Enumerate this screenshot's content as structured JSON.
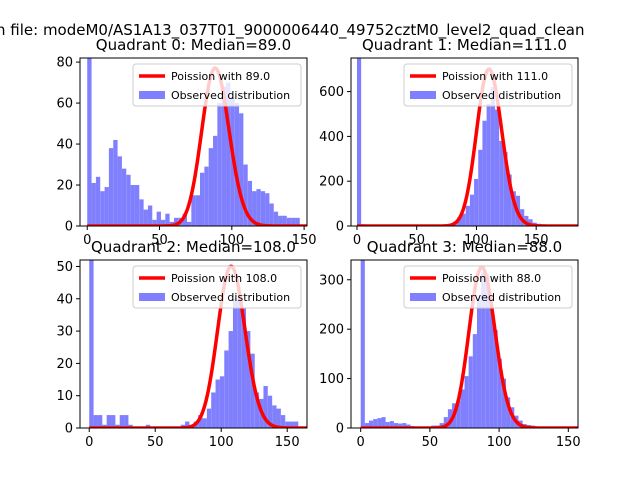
{
  "figure": {
    "suptitle": "n file: modeM0/AS1A13_037T01_9000006440_49752cztM0_level2_quad_clean"
  },
  "colors": {
    "hist": "#8080ff",
    "fit": "#ff0000",
    "axes": "#000000"
  },
  "chart_data": [
    {
      "type": "bar",
      "title": "Quadrant 0: Median=89.0",
      "xlim": [
        -5,
        152
      ],
      "ylim": [
        0,
        82
      ],
      "xticks": [
        0,
        50,
        100,
        150
      ],
      "yticks": [
        0,
        20,
        40,
        60,
        80
      ],
      "legend": {
        "placement": "upper-right",
        "fit_label": "Poission with 89.0",
        "hist_label": "Observed distribution"
      },
      "poisson_mean": 89.0,
      "poisson_peak": 77,
      "bin_width": 3,
      "bins": [
        [
          0,
          82
        ],
        [
          3,
          21
        ],
        [
          6,
          24
        ],
        [
          9,
          17
        ],
        [
          12,
          19
        ],
        [
          15,
          38
        ],
        [
          18,
          42
        ],
        [
          21,
          34
        ],
        [
          24,
          28
        ],
        [
          27,
          25
        ],
        [
          30,
          20
        ],
        [
          33,
          20
        ],
        [
          36,
          13
        ],
        [
          39,
          8
        ],
        [
          42,
          10
        ],
        [
          45,
          3
        ],
        [
          48,
          7
        ],
        [
          51,
          3
        ],
        [
          54,
          6
        ],
        [
          57,
          2
        ],
        [
          60,
          4
        ],
        [
          63,
          4
        ],
        [
          66,
          6
        ],
        [
          69,
          2
        ],
        [
          72,
          15
        ],
        [
          75,
          15
        ],
        [
          78,
          26
        ],
        [
          81,
          29
        ],
        [
          84,
          38
        ],
        [
          87,
          44
        ],
        [
          90,
          60
        ],
        [
          93,
          68
        ],
        [
          96,
          70
        ],
        [
          99,
          63
        ],
        [
          102,
          60
        ],
        [
          105,
          55
        ],
        [
          108,
          30
        ],
        [
          111,
          22
        ],
        [
          114,
          17
        ],
        [
          117,
          18
        ],
        [
          120,
          17
        ],
        [
          123,
          16
        ],
        [
          126,
          11
        ],
        [
          129,
          7
        ],
        [
          132,
          5
        ],
        [
          135,
          5
        ],
        [
          138,
          4
        ],
        [
          141,
          4
        ],
        [
          144,
          4
        ]
      ]
    },
    {
      "type": "bar",
      "title": "Quadrant 1: Median=111.0",
      "xlim": [
        -5,
        185
      ],
      "ylim": [
        0,
        750
      ],
      "xticks": [
        0,
        50,
        100,
        150
      ],
      "yticks": [
        0,
        200,
        400,
        600
      ],
      "legend": {
        "placement": "upper-right",
        "fit_label": "Poission with 111.0",
        "hist_label": "Observed distribution"
      },
      "poisson_mean": 111.0,
      "poisson_peak": 700,
      "bin_width": 3.5,
      "bins": [
        [
          0,
          760
        ],
        [
          3.5,
          8
        ],
        [
          52,
          5
        ],
        [
          56,
          3
        ],
        [
          59.5,
          3
        ],
        [
          63,
          5
        ],
        [
          66.5,
          3
        ],
        [
          70,
          6
        ],
        [
          73.5,
          3
        ],
        [
          77,
          10
        ],
        [
          80.5,
          20
        ],
        [
          84,
          40
        ],
        [
          87.5,
          55
        ],
        [
          91,
          90
        ],
        [
          94.5,
          140
        ],
        [
          98,
          210
        ],
        [
          101.5,
          340
        ],
        [
          105,
          470
        ],
        [
          108.5,
          545
        ],
        [
          112,
          620
        ],
        [
          115.5,
          520
        ],
        [
          119,
          380
        ],
        [
          122.5,
          330
        ],
        [
          126,
          230
        ],
        [
          129.5,
          155
        ],
        [
          133,
          135
        ],
        [
          136.5,
          75
        ],
        [
          140,
          45
        ],
        [
          143.5,
          30
        ],
        [
          147,
          15
        ],
        [
          150.5,
          10
        ],
        [
          154,
          8
        ],
        [
          157.5,
          5
        ],
        [
          161,
          3
        ],
        [
          164.5,
          2
        ],
        [
          168,
          3
        ],
        [
          171.5,
          2
        ]
      ]
    },
    {
      "type": "bar",
      "title": "Quadrant 2: Median=108.0",
      "xlim": [
        -7,
        165
      ],
      "ylim": [
        0,
        52
      ],
      "xticks": [
        0,
        50,
        100,
        150
      ],
      "yticks": [
        0,
        10,
        20,
        30,
        40,
        50
      ],
      "legend": {
        "placement": "upper-right",
        "fit_label": "Poission with 108.0",
        "hist_label": "Observed distribution"
      },
      "poisson_mean": 108.0,
      "poisson_peak": 50,
      "bin_width": 3.3,
      "bins": [
        [
          0,
          53
        ],
        [
          3.3,
          4
        ],
        [
          6.6,
          4
        ],
        [
          9.9,
          1
        ],
        [
          13.2,
          4
        ],
        [
          16.5,
          4
        ],
        [
          19.8,
          1
        ],
        [
          23.1,
          4
        ],
        [
          26.4,
          4
        ],
        [
          29.7,
          1
        ],
        [
          42.9,
          1
        ],
        [
          69.3,
          1
        ],
        [
          72.6,
          2
        ],
        [
          75.9,
          1
        ],
        [
          79.2,
          2
        ],
        [
          82.5,
          4
        ],
        [
          85.8,
          3
        ],
        [
          89.1,
          6
        ],
        [
          92.4,
          11
        ],
        [
          95.7,
          15
        ],
        [
          99,
          16
        ],
        [
          102.3,
          24
        ],
        [
          105.6,
          30
        ],
        [
          108.9,
          40
        ],
        [
          112.2,
          40
        ],
        [
          115.5,
          37
        ],
        [
          118.8,
          30
        ],
        [
          122.1,
          23
        ],
        [
          125.4,
          11
        ],
        [
          128.7,
          9
        ],
        [
          132,
          13
        ],
        [
          135.3,
          10
        ],
        [
          138.6,
          7
        ],
        [
          141.9,
          6
        ],
        [
          145.2,
          4
        ],
        [
          148.5,
          2
        ],
        [
          151.8,
          2
        ],
        [
          155.1,
          2
        ]
      ]
    },
    {
      "type": "bar",
      "title": "Quadrant 3: Median=88.0",
      "xlim": [
        -7,
        157
      ],
      "ylim": [
        0,
        340
      ],
      "xticks": [
        0,
        50,
        100,
        150
      ],
      "yticks": [
        0,
        100,
        200,
        300
      ],
      "legend": {
        "placement": "upper-right",
        "fit_label": "Poission with 88.0",
        "hist_label": "Observed distribution"
      },
      "poisson_mean": 88.0,
      "poisson_peak": 325,
      "bin_width": 3,
      "bins": [
        [
          0,
          340
        ],
        [
          3,
          10
        ],
        [
          6,
          15
        ],
        [
          9,
          18
        ],
        [
          12,
          20
        ],
        [
          15,
          22
        ],
        [
          18,
          12
        ],
        [
          21,
          14
        ],
        [
          24,
          10
        ],
        [
          27,
          9
        ],
        [
          30,
          10
        ],
        [
          33,
          7
        ],
        [
          36,
          4
        ],
        [
          39,
          3
        ],
        [
          42,
          3
        ],
        [
          45,
          3
        ],
        [
          48,
          3
        ],
        [
          51,
          5
        ],
        [
          54,
          5
        ],
        [
          57,
          10
        ],
        [
          60,
          22
        ],
        [
          63,
          38
        ],
        [
          66,
          50
        ],
        [
          69,
          55
        ],
        [
          72,
          78
        ],
        [
          75,
          105
        ],
        [
          78,
          145
        ],
        [
          81,
          190
        ],
        [
          84,
          260
        ],
        [
          87,
          315
        ],
        [
          90,
          310
        ],
        [
          93,
          250
        ],
        [
          96,
          198
        ],
        [
          99,
          140
        ],
        [
          102,
          100
        ],
        [
          105,
          62
        ],
        [
          108,
          42
        ],
        [
          111,
          25
        ],
        [
          114,
          15
        ],
        [
          117,
          8
        ],
        [
          120,
          6
        ],
        [
          123,
          5
        ],
        [
          126,
          3
        ],
        [
          129,
          3
        ],
        [
          132,
          2
        ],
        [
          135,
          2
        ],
        [
          138,
          2
        ]
      ]
    }
  ]
}
